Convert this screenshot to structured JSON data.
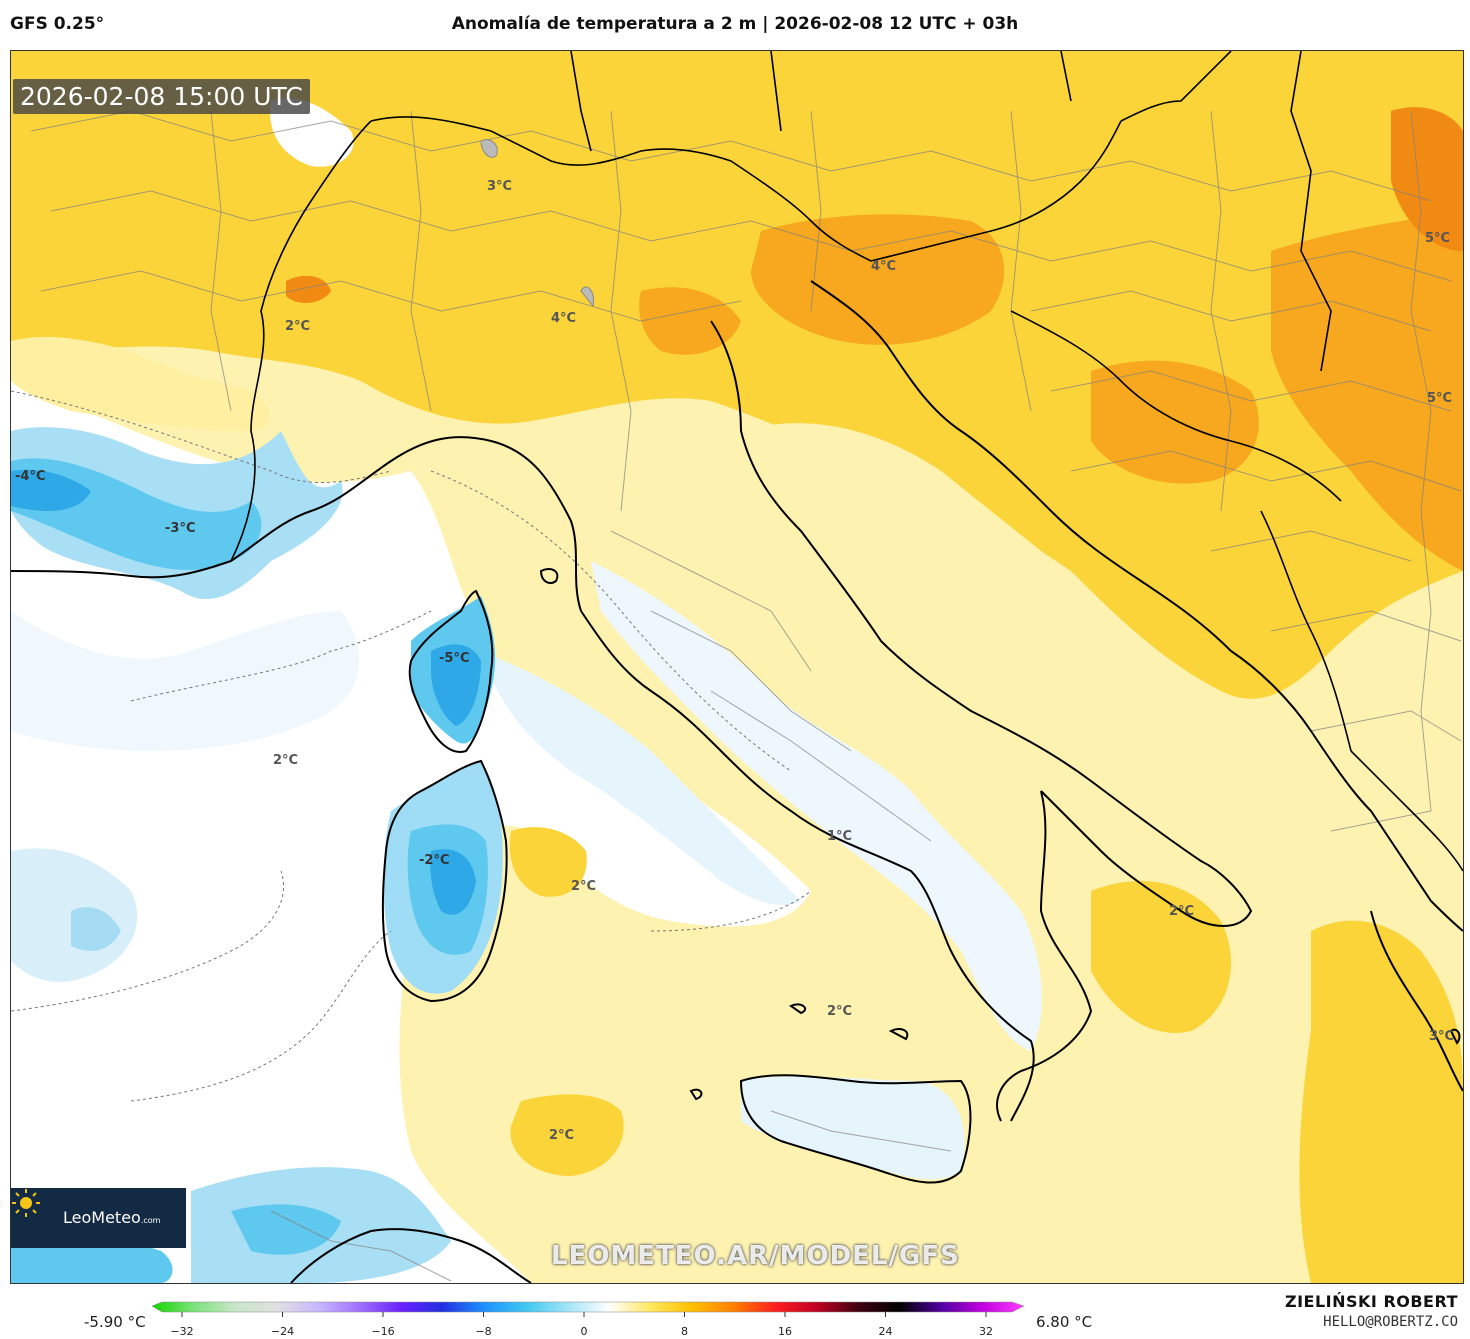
{
  "header": {
    "model": "GFS 0.25°",
    "title": "Anomalía de temperatura a 2 m | 2026-02-08 12 UTC + 03h"
  },
  "map": {
    "valid_time": "2026-02-08 15:00 UTC",
    "watermark": "LEOMETEO.AR/MODEL/GFS",
    "logo": {
      "name": "LeoMeteo",
      "suffix": ".com",
      "icon": "sun-icon"
    },
    "labels": [
      "3°C",
      "4°C",
      "4°C",
      "5°C",
      "5°C",
      "2°C",
      "-4°C",
      "-3°C",
      "-5°C",
      "2°C",
      "-2°C",
      "1°C",
      "2°C",
      "2°C",
      "2°C",
      "2°C",
      "3°C"
    ],
    "colors": {
      "warm_light": "#fdf0a8",
      "warm_yellow": "#fbd43a",
      "warm_orange": "#f7a81e",
      "cold_light": "#dcf1fb",
      "cold_cyan": "#5fc7ef",
      "cold_blue": "#29a7e6"
    }
  },
  "legend": {
    "min_label": "-5.90 °C",
    "max_label": "6.80 °C",
    "ticks": [
      "−32",
      "−24",
      "−16",
      "−8",
      "0",
      "8",
      "16",
      "24",
      "32"
    ],
    "stops": [
      "#14d400",
      "#7ae37a",
      "#c8e6c8",
      "#e0e0e0",
      "#c8b8ff",
      "#a070ff",
      "#6a20ff",
      "#2030e0",
      "#1e90ff",
      "#40c8f0",
      "#a0e4f8",
      "#ffffff",
      "#ffe860",
      "#ffc000",
      "#ff8000",
      "#ff2020",
      "#c00020",
      "#400010",
      "#000000",
      "#5000a0",
      "#c000e0",
      "#ff40ff"
    ]
  },
  "credits": {
    "author": "ZIELIŃSKI ROBERT",
    "email": "HELLO@ROBERTZ.CO"
  }
}
